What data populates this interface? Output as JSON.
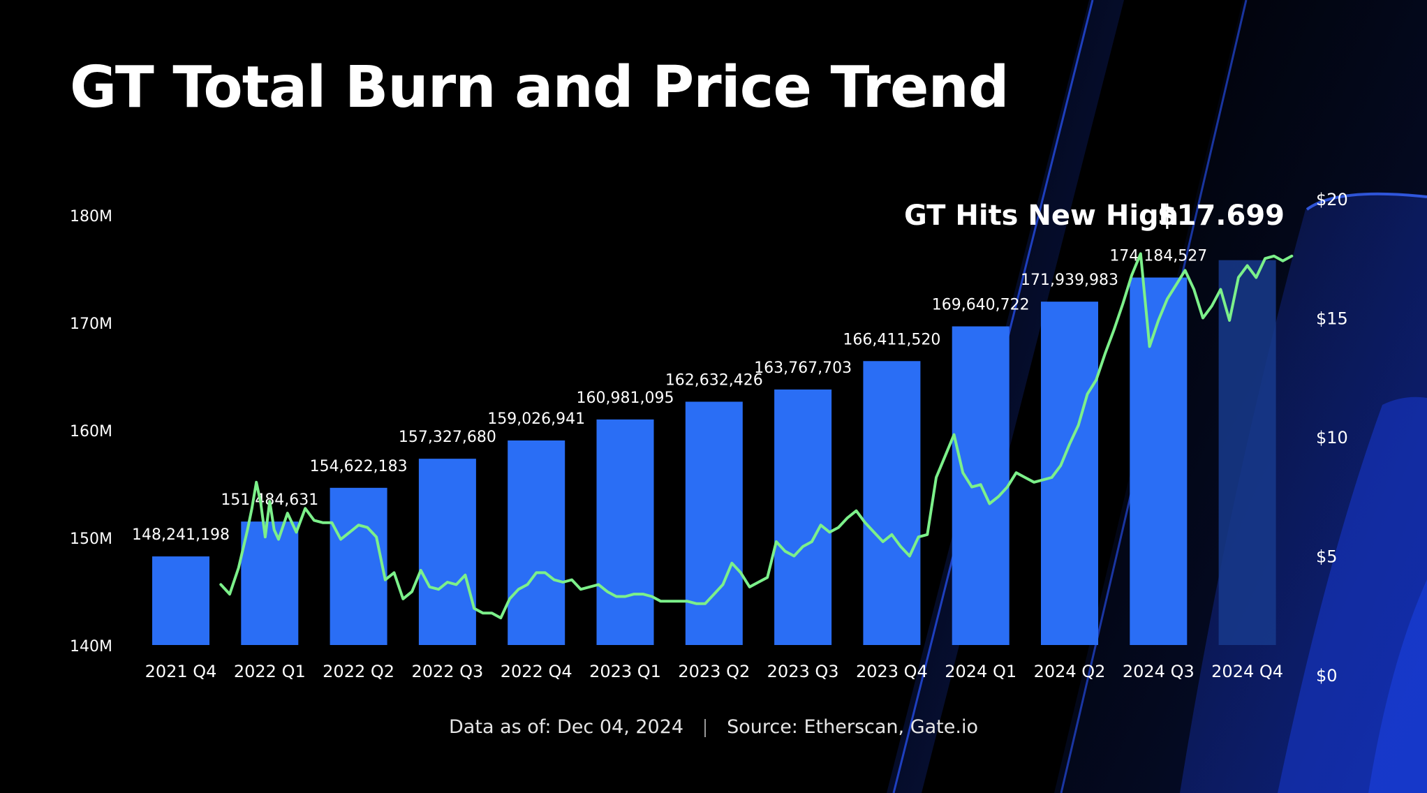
{
  "title": "GT Total Burn and Price Trend",
  "footer": {
    "data_as_of": "Data as of: Dec 04, 2024",
    "source": "Source: Etherscan, Gate.io"
  },
  "annotation": {
    "label": "GT Hits New High",
    "value": "$17.699"
  },
  "colors": {
    "background": "#000000",
    "bar": "#2a6ef5",
    "bar_highlight": "#173a8c",
    "price_line": "#7cf08a",
    "accent_band": "#1a3fd6"
  },
  "chart_data": {
    "type": "bar",
    "categories": [
      "2021 Q4",
      "2022 Q1",
      "2022 Q2",
      "2022 Q3",
      "2022 Q4",
      "2023 Q1",
      "2023 Q2",
      "2023 Q3",
      "2023 Q4",
      "2024 Q1",
      "2024 Q2",
      "2024 Q3",
      "2024 Q4"
    ],
    "series": [
      {
        "type": "bar",
        "axis": "left",
        "values": [
          148241198,
          151484631,
          154622183,
          157327680,
          159026941,
          160981095,
          162632426,
          163767703,
          166411520,
          169640722,
          171939983,
          174184527,
          175800000
        ],
        "data_labels": [
          "148,241,198",
          "151,484,631",
          "154,622,183",
          "157,327,680",
          "159,026,941",
          "160,981,095",
          "162,632,426",
          "163,767,703",
          "166,411,520",
          "169,640,722",
          "171,939,983",
          "174,184,527",
          ""
        ]
      },
      {
        "type": "line",
        "axis": "right",
        "x": [
          0.45,
          0.55,
          0.65,
          0.75,
          0.8,
          0.85,
          0.9,
          0.95,
          1.0,
          1.05,
          1.1,
          1.2,
          1.3,
          1.4,
          1.5,
          1.6,
          1.7,
          1.8,
          1.9,
          2.0,
          2.1,
          2.2,
          2.3,
          2.4,
          2.5,
          2.6,
          2.7,
          2.8,
          2.9,
          3.0,
          3.1,
          3.2,
          3.3,
          3.4,
          3.5,
          3.6,
          3.7,
          3.8,
          3.9,
          4.0,
          4.1,
          4.2,
          4.3,
          4.4,
          4.5,
          4.6,
          4.7,
          4.8,
          4.9,
          5.0,
          5.1,
          5.2,
          5.3,
          5.4,
          5.5,
          5.6,
          5.7,
          5.8,
          5.9,
          6.0,
          6.1,
          6.2,
          6.3,
          6.4,
          6.5,
          6.6,
          6.7,
          6.8,
          6.9,
          7.0,
          7.1,
          7.2,
          7.3,
          7.4,
          7.5,
          7.6,
          7.7,
          7.8,
          7.9,
          8.0,
          8.1,
          8.2,
          8.3,
          8.4,
          8.5,
          8.6,
          8.7,
          8.8,
          8.9,
          9.0,
          9.1,
          9.2,
          9.3,
          9.4,
          9.5,
          9.6,
          9.7,
          9.8,
          9.9,
          10.0,
          10.1,
          10.2,
          10.3,
          10.4,
          10.5,
          10.6,
          10.7,
          10.8,
          10.9,
          11.0,
          11.1,
          11.2,
          11.3,
          11.4,
          11.5,
          11.6,
          11.7,
          11.8,
          11.9,
          12.0,
          12.1,
          12.2,
          12.3,
          12.4,
          12.5
        ],
        "values": [
          3.8,
          3.4,
          4.5,
          6.1,
          7.0,
          8.1,
          7.2,
          5.8,
          7.3,
          6.1,
          5.7,
          6.8,
          6.0,
          7.0,
          6.5,
          6.4,
          6.4,
          5.7,
          6.0,
          6.3,
          6.2,
          5.8,
          4.0,
          4.3,
          3.2,
          3.5,
          4.4,
          3.7,
          3.6,
          3.9,
          3.8,
          4.2,
          2.8,
          2.6,
          2.6,
          2.4,
          3.2,
          3.6,
          3.8,
          4.3,
          4.3,
          4.0,
          3.9,
          4.0,
          3.6,
          3.7,
          3.8,
          3.5,
          3.3,
          3.3,
          3.4,
          3.4,
          3.3,
          3.1,
          3.1,
          3.1,
          3.1,
          3.0,
          3.0,
          3.4,
          3.8,
          4.7,
          4.3,
          3.7,
          3.9,
          4.1,
          5.6,
          5.2,
          5.0,
          5.4,
          5.6,
          6.3,
          6.0,
          6.2,
          6.6,
          6.9,
          6.4,
          6.0,
          5.6,
          5.9,
          5.4,
          5.0,
          5.8,
          5.9,
          8.3,
          9.2,
          10.1,
          8.5,
          7.9,
          8.0,
          7.2,
          7.5,
          7.9,
          8.5,
          8.3,
          8.1,
          8.2,
          8.3,
          8.8,
          9.7,
          10.5,
          11.8,
          12.4,
          13.5,
          14.5,
          15.6,
          16.8,
          17.7,
          13.8,
          14.9,
          15.8,
          16.4,
          17.0,
          16.2,
          15.0,
          15.5,
          16.2,
          14.9,
          16.7,
          17.2,
          16.7,
          17.5,
          17.6,
          17.4,
          17.6
        ]
      }
    ],
    "y_left": {
      "ticks": [
        "140M",
        "150M",
        "160M",
        "170M",
        "180M"
      ],
      "min": 140000000,
      "max": 180000000
    },
    "y_right": {
      "ticks": [
        "$0",
        "$5",
        "$10",
        "$15",
        "$20"
      ],
      "min": 0,
      "max": 20
    },
    "grid": false,
    "legend": "none"
  }
}
